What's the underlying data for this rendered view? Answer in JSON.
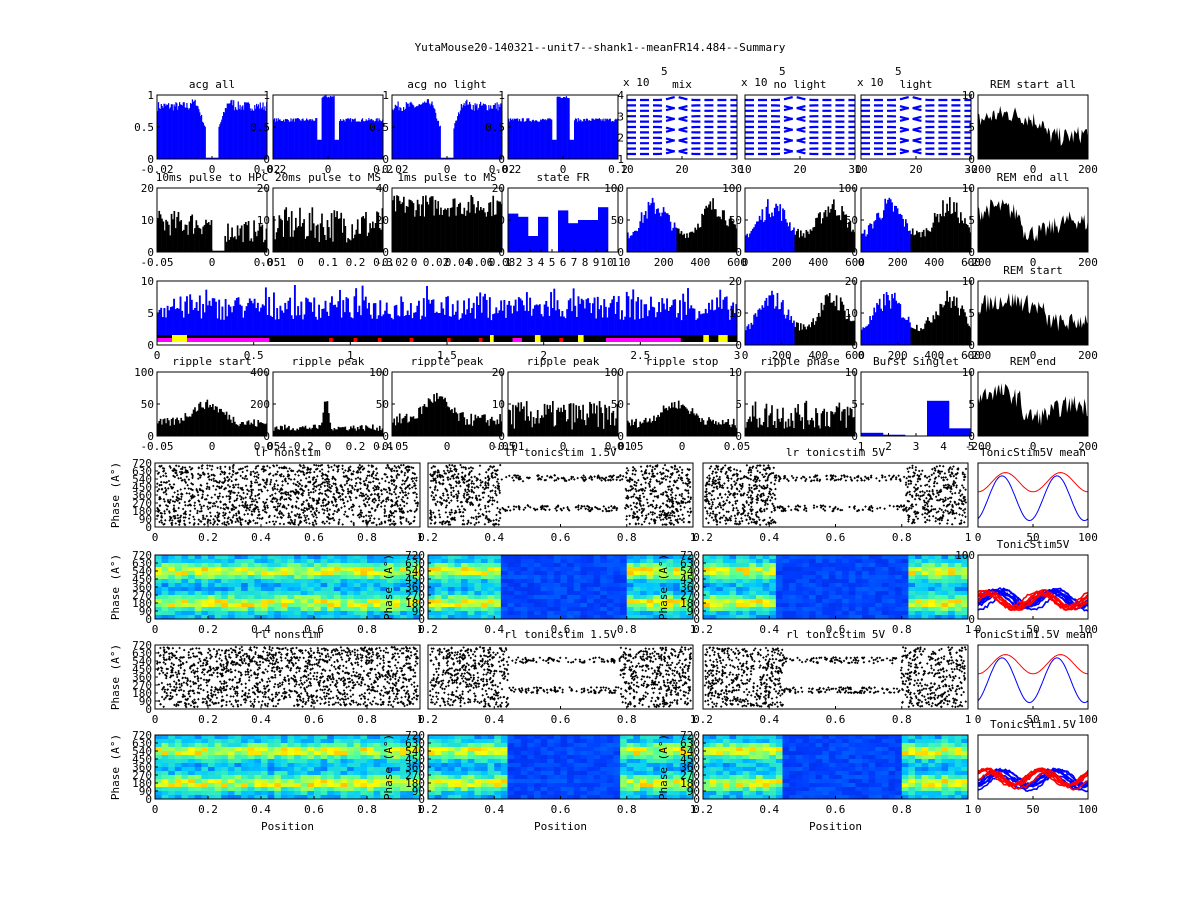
{
  "figure": {
    "title": "YutaMouse20-140321--unit7--shank1--meanFR14.484--Summary"
  },
  "colors": {
    "blue": "#0000ff",
    "black": "#000000",
    "red": "#ff0000",
    "magenta": "#ff00ff",
    "yellow": "#ffff00"
  },
  "chart_data": [
    {
      "id": "acg-all",
      "type": "bar",
      "title": "acg all",
      "ylim": [
        0,
        1
      ],
      "yticks": [
        "1",
        "0.5",
        "0"
      ],
      "xticks": [
        "-0.02",
        "0",
        "0.02"
      ],
      "fill": "blue",
      "shape": "acg-dip"
    },
    {
      "id": "acg-1",
      "type": "bar",
      "title": "",
      "ylim": [
        0,
        1
      ],
      "yticks": [
        "1",
        "0.5",
        "0"
      ],
      "xticks": [
        "-0.2",
        "0",
        "0.2"
      ],
      "fill": "blue",
      "shape": "acg-peak"
    },
    {
      "id": "acg-no-light",
      "type": "bar",
      "title": "acg no light",
      "ylim": [
        0,
        1
      ],
      "yticks": [
        "1",
        "0.5",
        "0"
      ],
      "xticks": [
        "-0.02",
        "0",
        "0.02"
      ],
      "fill": "blue",
      "shape": "acg-dip"
    },
    {
      "id": "acg-2",
      "type": "bar",
      "title": "",
      "ylim": [
        0,
        1
      ],
      "yticks": [
        "1",
        "0.5",
        "0"
      ],
      "xticks": [
        "-0.2",
        "0",
        "0.2"
      ],
      "fill": "blue",
      "shape": "acg-peak"
    },
    {
      "id": "wave-mix",
      "type": "line",
      "title": "mix",
      "multiplier": "x 10",
      "exponent": "5",
      "yticks": [
        "4",
        "3",
        "2",
        "1"
      ],
      "xticks": [
        "10",
        "20",
        "30"
      ],
      "shape": "waveform"
    },
    {
      "id": "wave-no-light",
      "type": "line",
      "title": "no light",
      "multiplier": "x 10",
      "exponent": "5",
      "yticks": [],
      "xticks": [
        "10",
        "20",
        "30"
      ],
      "shape": "waveform"
    },
    {
      "id": "wave-light",
      "type": "line",
      "title": "light",
      "multiplier": "x 10",
      "exponent": "5",
      "yticks": [],
      "xticks": [
        "10",
        "20",
        "30"
      ],
      "shape": "waveform"
    },
    {
      "id": "rem-start-all",
      "type": "area",
      "title": "REM start all",
      "ylim": [
        0,
        10
      ],
      "yticks": [
        "10",
        "5",
        "0"
      ],
      "xticks": [
        "-200",
        "0",
        "200"
      ],
      "fill": "black",
      "shape": "rem"
    },
    {
      "id": "pulse-hpc",
      "type": "bar",
      "title": "10ms pulse to HPC",
      "ylim": [
        0,
        20
      ],
      "yticks": [
        "20",
        "10",
        "0"
      ],
      "xticks": [
        "-0.05",
        "0",
        "0.05"
      ],
      "fill": "black",
      "shape": "pulse-dip"
    },
    {
      "id": "pulse-ms",
      "type": "bar",
      "title": "20ms pulse to MS",
      "ylim": [
        0,
        20
      ],
      "yticks": [
        "20",
        "10",
        "0"
      ],
      "xticks": [
        "-0.1",
        "0",
        "0.1",
        "0.2",
        "0.3"
      ],
      "fill": "black",
      "shape": "noise"
    },
    {
      "id": "pulse-ms2",
      "type": "bar",
      "title": "1ms pulse to MS",
      "ylim": [
        0,
        40
      ],
      "yticks": [
        "40",
        "20",
        "0"
      ],
      "xticks": [
        "-0.02",
        "0",
        "0.02",
        "0.04",
        "0.06",
        "0.08"
      ],
      "fill": "black",
      "shape": "noise-high"
    },
    {
      "id": "state-fr",
      "type": "bar",
      "title": "state FR",
      "ylim": [
        0,
        20
      ],
      "yticks": [
        "20",
        "10",
        "0"
      ],
      "xticks": [
        "1",
        "2",
        "3",
        "4",
        "5",
        "6",
        "7",
        "8",
        "9",
        "10",
        "11"
      ],
      "values": [
        12,
        11,
        5,
        11,
        0,
        13,
        9,
        10,
        10,
        14,
        0
      ],
      "fill": "blue"
    },
    {
      "id": "phase-1",
      "type": "bar",
      "title": "",
      "ylim": [
        0,
        100
      ],
      "yticks": [
        "100",
        "50",
        "0"
      ],
      "xticks": [
        "0",
        "200",
        "400",
        "600"
      ],
      "fill": "bicolor",
      "shape": "phase"
    },
    {
      "id": "phase-2",
      "type": "bar",
      "title": "",
      "ylim": [
        0,
        100
      ],
      "yticks": [
        "100",
        "50",
        "0"
      ],
      "xticks": [
        "0",
        "200",
        "400",
        "600"
      ],
      "fill": "bicolor",
      "shape": "phase"
    },
    {
      "id": "phase-3",
      "type": "bar",
      "title": "",
      "ylim": [
        0,
        100
      ],
      "yticks": [
        "100",
        "50",
        "0"
      ],
      "xticks": [
        "0",
        "200",
        "400",
        "600"
      ],
      "fill": "bicolor",
      "shape": "phase"
    },
    {
      "id": "rem-end-all",
      "type": "area",
      "title": "REM end all",
      "ylim": [
        0,
        10
      ],
      "yticks": [
        "10",
        "5",
        "0"
      ],
      "xticks": [
        "-200",
        "0",
        "200"
      ],
      "fill": "black",
      "shape": "rem-end"
    },
    {
      "id": "timeline",
      "type": "bar",
      "title": "",
      "ylim": [
        0,
        12
      ],
      "yticks": [
        "10",
        "5",
        "0"
      ],
      "xticks": [
        "0",
        "0.5",
        "1",
        "1.5",
        "2",
        "2.5",
        "3"
      ],
      "fill": "blue",
      "shape": "timeline",
      "states": [
        {
          "start": 0.0,
          "end": 0.6,
          "color": "magenta"
        },
        {
          "start": 0.08,
          "end": 0.16,
          "color": "yellow"
        },
        {
          "start": 0.92,
          "end": 0.94,
          "color": "red"
        },
        {
          "start": 1.05,
          "end": 1.07,
          "color": "red"
        },
        {
          "start": 1.18,
          "end": 1.2,
          "color": "red"
        },
        {
          "start": 1.35,
          "end": 1.37,
          "color": "red"
        },
        {
          "start": 1.55,
          "end": 1.57,
          "color": "red"
        },
        {
          "start": 1.72,
          "end": 1.74,
          "color": "red"
        },
        {
          "start": 1.78,
          "end": 1.8,
          "color": "yellow"
        },
        {
          "start": 1.9,
          "end": 1.95,
          "color": "magenta"
        },
        {
          "start": 2.02,
          "end": 2.05,
          "color": "yellow"
        },
        {
          "start": 2.15,
          "end": 2.17,
          "color": "red"
        },
        {
          "start": 2.25,
          "end": 2.28,
          "color": "yellow"
        },
        {
          "start": 2.4,
          "end": 2.8,
          "color": "magenta"
        },
        {
          "start": 2.92,
          "end": 2.95,
          "color": "yellow"
        },
        {
          "start": 3.0,
          "end": 3.05,
          "color": "yellow"
        }
      ]
    },
    {
      "id": "phase-4",
      "type": "bar",
      "title": "",
      "ylim": [
        0,
        20
      ],
      "yticks": [
        "20",
        "10",
        "0"
      ],
      "xticks": [
        "0",
        "200",
        "400",
        "600"
      ],
      "fill": "bicolor",
      "shape": "phase"
    },
    {
      "id": "phase-5",
      "type": "bar",
      "title": "",
      "ylim": [
        0,
        20
      ],
      "yticks": [
        "20",
        "10",
        "0"
      ],
      "xticks": [
        "0",
        "200",
        "400",
        "600"
      ],
      "fill": "bicolor",
      "shape": "phase"
    },
    {
      "id": "rem-start",
      "type": "area",
      "title": "REM start",
      "ylim": [
        0,
        10
      ],
      "yticks": [
        "10",
        "5",
        "0"
      ],
      "xticks": [
        "-200",
        "0",
        "200"
      ],
      "fill": "black",
      "shape": "rem"
    },
    {
      "id": "ripple-start",
      "type": "bar",
      "title": "ripple start",
      "ylim": [
        0,
        100
      ],
      "yticks": [
        "100",
        "50",
        "0"
      ],
      "xticks": [
        "-0.05",
        "0",
        "0.05"
      ],
      "fill": "black",
      "shape": "ripple-low"
    },
    {
      "id": "ripple-peak-1",
      "type": "bar",
      "title": "ripple peak",
      "ylim": [
        0,
        400
      ],
      "yticks": [
        "400",
        "200",
        "0"
      ],
      "xticks": [
        "-0.4",
        "-0.2",
        "0",
        "0.2",
        "0.4"
      ],
      "fill": "black",
      "shape": "ripple-spike"
    },
    {
      "id": "ripple-peak-2",
      "type": "bar",
      "title": "ripple peak",
      "ylim": [
        0,
        100
      ],
      "yticks": [
        "100",
        "50",
        "0"
      ],
      "xticks": [
        "-0.05",
        "0",
        "0.05"
      ],
      "fill": "black",
      "shape": "ripple-mid"
    },
    {
      "id": "ripple-peak-3",
      "type": "bar",
      "title": "ripple peak",
      "ylim": [
        0,
        20
      ],
      "yticks": [
        "20",
        "10",
        "0"
      ],
      "xticks": [
        "-0.01",
        "0",
        "0.01"
      ],
      "fill": "black",
      "shape": "ripple-flat"
    },
    {
      "id": "ripple-stop",
      "type": "bar",
      "title": "ripple stop",
      "ylim": [
        0,
        100
      ],
      "yticks": [
        "100",
        "50",
        "0"
      ],
      "xticks": [
        "-0.05",
        "0",
        "0.05"
      ],
      "fill": "black",
      "shape": "ripple-low"
    },
    {
      "id": "ripple-phase",
      "type": "bar",
      "title": "ripple phase",
      "ylim": [
        0,
        10
      ],
      "yticks": [
        "10",
        "5",
        "0"
      ],
      "xticks": [],
      "fill": "black",
      "shape": "ripple-flat"
    },
    {
      "id": "burst-singlet",
      "type": "bar",
      "title": "Burst Singlet",
      "ylim": [
        0,
        10
      ],
      "yticks": [
        "10",
        "5",
        "0"
      ],
      "xticks": [
        "1",
        "2",
        "3",
        "4",
        "5"
      ],
      "values": [
        0.5,
        0.2,
        0,
        5.5,
        1.2
      ],
      "fill": "blue"
    },
    {
      "id": "rem-end",
      "type": "area",
      "title": "REM end",
      "ylim": [
        0,
        10
      ],
      "yticks": [
        "10",
        "5",
        "0"
      ],
      "xticks": [
        "-200",
        "0",
        "200"
      ],
      "fill": "black",
      "shape": "rem-end"
    },
    {
      "id": "lr-nonstim",
      "type": "scatter",
      "title": "lr nonstim",
      "ylabel": "Phase (A°)",
      "yticks": [
        "720",
        "630",
        "540",
        "450",
        "360",
        "270",
        "180",
        "90",
        "0"
      ],
      "xticks": [
        "0",
        "0.2",
        "0.4",
        "0.6",
        "0.8",
        "1"
      ],
      "gap": null
    },
    {
      "id": "lr-tonic-15",
      "type": "scatter",
      "title": "lr tonicstim 1.5V",
      "yticks": [],
      "xticks": [
        "0.2",
        "0.4",
        "0.6",
        "0.8",
        "1"
      ],
      "gap": [
        0.27,
        0.75
      ]
    },
    {
      "id": "lr-tonic-5",
      "type": "scatter",
      "title": "lr tonicstim 5V",
      "yticks": [],
      "xticks": [
        "0.2",
        "0.4",
        "0.6",
        "0.8",
        "1"
      ],
      "gap": [
        0.27,
        0.77
      ]
    },
    {
      "id": "tonic5-mean",
      "type": "line",
      "title": "TonicStim5V mean",
      "yticks": [],
      "xticks": [
        "0",
        "50",
        "100"
      ],
      "shape": "mean"
    },
    {
      "id": "lr-heat-nonstim",
      "type": "heatmap",
      "title": "",
      "ylabel": "Phase (A°)",
      "yticks": [
        "720",
        "630",
        "540",
        "450",
        "360",
        "270",
        "180",
        "90",
        "0"
      ],
      "xticks": [
        "0",
        "0.2",
        "0.4",
        "0.6",
        "0.8",
        "1"
      ],
      "gap": null
    },
    {
      "id": "lr-heat-15",
      "type": "heatmap",
      "title": "",
      "ylabel": "Phase (A°)",
      "yticks": [
        "720",
        "630",
        "540",
        "450",
        "360",
        "270",
        "180",
        "90",
        "0"
      ],
      "xticks": [
        "0.2",
        "0.4",
        "0.6",
        "0.8",
        "1"
      ],
      "gap": [
        0.27,
        0.75
      ]
    },
    {
      "id": "lr-heat-5",
      "type": "heatmap",
      "title": "",
      "ylabel": "Phase (A°)",
      "yticks": [
        "720",
        "630",
        "540",
        "450",
        "360",
        "270",
        "180",
        "90",
        "0"
      ],
      "xticks": [
        "0.2",
        "0.4",
        "0.6",
        "0.8",
        "1"
      ],
      "gap": [
        0.27,
        0.77
      ]
    },
    {
      "id": "tonic5-traces",
      "type": "line",
      "title": "TonicStim5V",
      "yticks": [
        "100",
        "0"
      ],
      "xticks": [
        "0",
        "50",
        "100"
      ],
      "shape": "traces"
    },
    {
      "id": "rl-nonstim",
      "type": "scatter",
      "title": "rl nonstim",
      "ylabel": "Phase (A°)",
      "yticks": [
        "720",
        "630",
        "540",
        "450",
        "360",
        "270",
        "180",
        "90",
        "0"
      ],
      "xticks": [
        "0",
        "0.2",
        "0.4",
        "0.6",
        "0.8",
        "1"
      ],
      "gap": null
    },
    {
      "id": "rl-tonic-15",
      "type": "scatter",
      "title": "rl tonicstim 1.5V",
      "yticks": [],
      "xticks": [
        "0.2",
        "0.4",
        "0.6",
        "0.8",
        "1"
      ],
      "gap": [
        0.3,
        0.73
      ]
    },
    {
      "id": "rl-tonic-5",
      "type": "scatter",
      "title": "rl tonicstim 5V",
      "yticks": [],
      "xticks": [
        "0.2",
        "0.4",
        "0.6",
        "0.8",
        "1"
      ],
      "gap": [
        0.3,
        0.75
      ]
    },
    {
      "id": "tonic15-mean",
      "type": "line",
      "title": "TonicStim1.5V mean",
      "yticks": [],
      "xticks": [
        "0",
        "50",
        "100"
      ],
      "shape": "mean"
    },
    {
      "id": "rl-heat-nonstim",
      "type": "heatmap",
      "title": "",
      "ylabel": "Phase (A°)",
      "xlabel": "Position",
      "yticks": [
        "720",
        "630",
        "540",
        "450",
        "360",
        "270",
        "180",
        "90",
        "0"
      ],
      "xticks": [
        "0",
        "0.2",
        "0.4",
        "0.6",
        "0.8",
        "1"
      ],
      "gap": null
    },
    {
      "id": "rl-heat-15",
      "type": "heatmap",
      "title": "",
      "ylabel": "Phase (A°)",
      "xlabel": "Position",
      "yticks": [
        "720",
        "630",
        "540",
        "450",
        "360",
        "270",
        "180",
        "90",
        "0"
      ],
      "xticks": [
        "0.2",
        "0.4",
        "0.6",
        "0.8",
        "1"
      ],
      "gap": [
        0.3,
        0.73
      ]
    },
    {
      "id": "rl-heat-5",
      "type": "heatmap",
      "title": "",
      "ylabel": "Phase (A°)",
      "xlabel": "Position",
      "yticks": [
        "720",
        "630",
        "540",
        "450",
        "360",
        "270",
        "180",
        "90",
        "0"
      ],
      "xticks": [
        "0.2",
        "0.4",
        "0.6",
        "0.8",
        "1"
      ],
      "gap": [
        0.3,
        0.75
      ]
    },
    {
      "id": "tonic15-traces",
      "type": "line",
      "title": "TonicStim1.5V",
      "yticks": [],
      "xticks": [
        "0",
        "50",
        "100"
      ],
      "shape": "traces"
    }
  ]
}
